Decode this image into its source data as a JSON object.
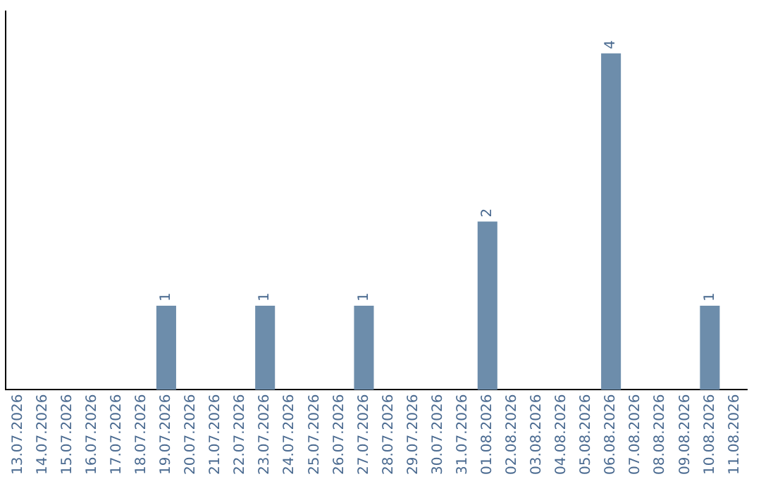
{
  "chart_data": {
    "type": "bar",
    "categories": [
      "13.07.2026",
      "14.07.2026",
      "15.07.2026",
      "16.07.2026",
      "17.07.2026",
      "18.07.2026",
      "19.07.2026",
      "20.07.2026",
      "21.07.2026",
      "22.07.2026",
      "23.07.2026",
      "24.07.2026",
      "25.07.2026",
      "26.07.2026",
      "27.07.2026",
      "28.07.2026",
      "29.07.2026",
      "30.07.2026",
      "31.07.2026",
      "01.08.2026",
      "02.08.2026",
      "03.08.2026",
      "04.08.2026",
      "05.08.2026",
      "06.08.2026",
      "07.08.2026",
      "08.08.2026",
      "09.08.2026",
      "10.08.2026",
      "11.08.2026"
    ],
    "values": [
      null,
      null,
      null,
      null,
      null,
      null,
      1,
      null,
      null,
      null,
      1,
      null,
      null,
      null,
      1,
      null,
      null,
      null,
      null,
      2,
      null,
      null,
      null,
      null,
      4,
      null,
      null,
      null,
      1,
      null
    ],
    "color": "#6d8dab",
    "data_labels": true,
    "grid": false,
    "legend": false
  }
}
